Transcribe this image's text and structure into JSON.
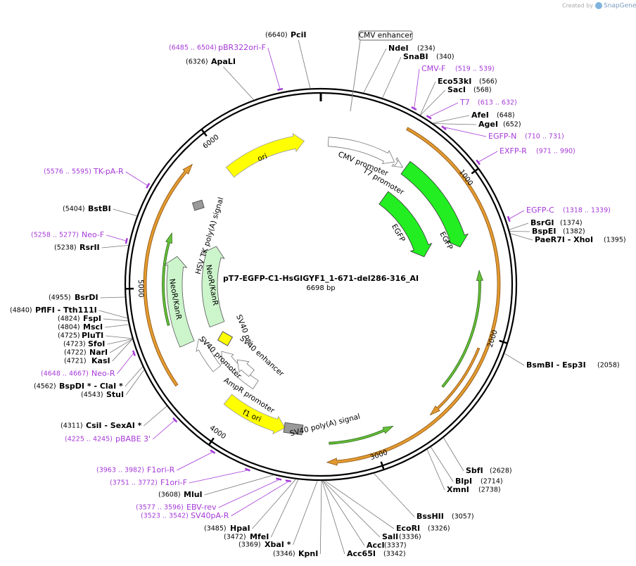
{
  "header": {
    "watermark": "Created by",
    "brand": "SnapGene"
  },
  "map": {
    "title": "pT7-EGFP-C1-HsGIGYF1_1-671-del286-316_AI",
    "length": "6698 bp",
    "ring_ticks": [
      1000,
      2000,
      3000,
      4000,
      5000,
      6000
    ],
    "sites": [
      {
        "name": "NdeI",
        "pos": "(234)"
      },
      {
        "name": "SnaBI",
        "pos": "(340)"
      },
      {
        "name": "Eco53kI",
        "pos": "(566)"
      },
      {
        "name": "SacI",
        "pos": "(568)"
      },
      {
        "name": "AfeI",
        "pos": "(648)"
      },
      {
        "name": "AgeI",
        "pos": "(652)"
      },
      {
        "name": "BsrGI",
        "pos": "(1374)"
      },
      {
        "name": "BspEI",
        "pos": "(1382)"
      },
      {
        "name": "PaeR7I - XhoI",
        "pos": "(1395)"
      },
      {
        "name": "BsmBI - Esp3I",
        "pos": "(2058)"
      },
      {
        "name": "SbfI",
        "pos": "(2628)"
      },
      {
        "name": "BlpI",
        "pos": "(2714)"
      },
      {
        "name": "XmnI",
        "pos": "(2738)"
      },
      {
        "name": "BssHII",
        "pos": "(3057)"
      },
      {
        "name": "EcoRI",
        "pos": "(3326)"
      },
      {
        "name": "SalI",
        "pos": "(3336)"
      },
      {
        "name": "AccI",
        "pos": "(3337)"
      },
      {
        "name": "Acc65I",
        "pos": "(3342)"
      },
      {
        "name": "PciI",
        "pos": "(6640)"
      },
      {
        "name": "ApaLI",
        "pos": "(6326)"
      },
      {
        "name": "KpnI",
        "pos": "(3346)"
      },
      {
        "name": "XbaI *",
        "pos": "(3369)"
      },
      {
        "name": "MfeI",
        "pos": "(3472)"
      },
      {
        "name": "HpaI",
        "pos": "(3485)"
      },
      {
        "name": "MluI",
        "pos": "(3608)"
      },
      {
        "name": "CsiI - SexAI *",
        "pos": "(4311)"
      },
      {
        "name": "StuI",
        "pos": "(4543)"
      },
      {
        "name": "BspDI * - ClaI *",
        "pos": "(4562)"
      },
      {
        "name": "KasI",
        "pos": "(4721)"
      },
      {
        "name": "NarI",
        "pos": "(4722)"
      },
      {
        "name": "SfoI",
        "pos": "(4723)"
      },
      {
        "name": "PluTI",
        "pos": "(4725)"
      },
      {
        "name": "MscI",
        "pos": "(4804)"
      },
      {
        "name": "FspI",
        "pos": "(4824)"
      },
      {
        "name": "PflFI - Tth111I",
        "pos": "(4840)"
      },
      {
        "name": "BsrDI",
        "pos": "(4955)"
      },
      {
        "name": "RsrII",
        "pos": "(5238)"
      },
      {
        "name": "BstBI",
        "pos": "(5404)"
      }
    ],
    "primers": [
      {
        "name": "CMV-F",
        "range": "(519 .. 539)"
      },
      {
        "name": "T7",
        "range": "(613 .. 632)"
      },
      {
        "name": "EGFP-N",
        "range": "(710 .. 731)"
      },
      {
        "name": "EXFP-R",
        "range": "(971 .. 990)"
      },
      {
        "name": "EGFP-C",
        "range": "(1318 .. 1339)"
      },
      {
        "name": "Neo-R",
        "range": "(4648 .. 4667)"
      },
      {
        "name": "pBR322ori-F",
        "range": "(6485 .. 6504)"
      },
      {
        "name": "SV40pA-R",
        "range": "(3523 .. 3542)"
      },
      {
        "name": "EBV-rev",
        "range": "(3577 .. 3596)"
      },
      {
        "name": "F1ori-F",
        "range": "(3751 .. 3772)"
      },
      {
        "name": "F1ori-R",
        "range": "(3963 .. 3982)"
      },
      {
        "name": "pBABE 3'",
        "range": "(4225 .. 4245)"
      },
      {
        "name": "Neo-F",
        "range": "(5258 .. 5277)"
      },
      {
        "name": "TK-pA-R",
        "range": "(5576 .. 5595)"
      }
    ],
    "features": [
      "ori",
      "CMV promoter",
      "T7 promoter",
      "EGFP",
      "EGFP",
      "NeoR/KanR",
      "NeoR/KanR",
      "HSV TK poly(A) signal",
      "SV40 ori",
      "SV40 enhancer",
      "SV40 promoter",
      "AmpR promoter",
      "f1 ori",
      "SV40 poly(A) signal",
      "CMV enhancer"
    ]
  }
}
